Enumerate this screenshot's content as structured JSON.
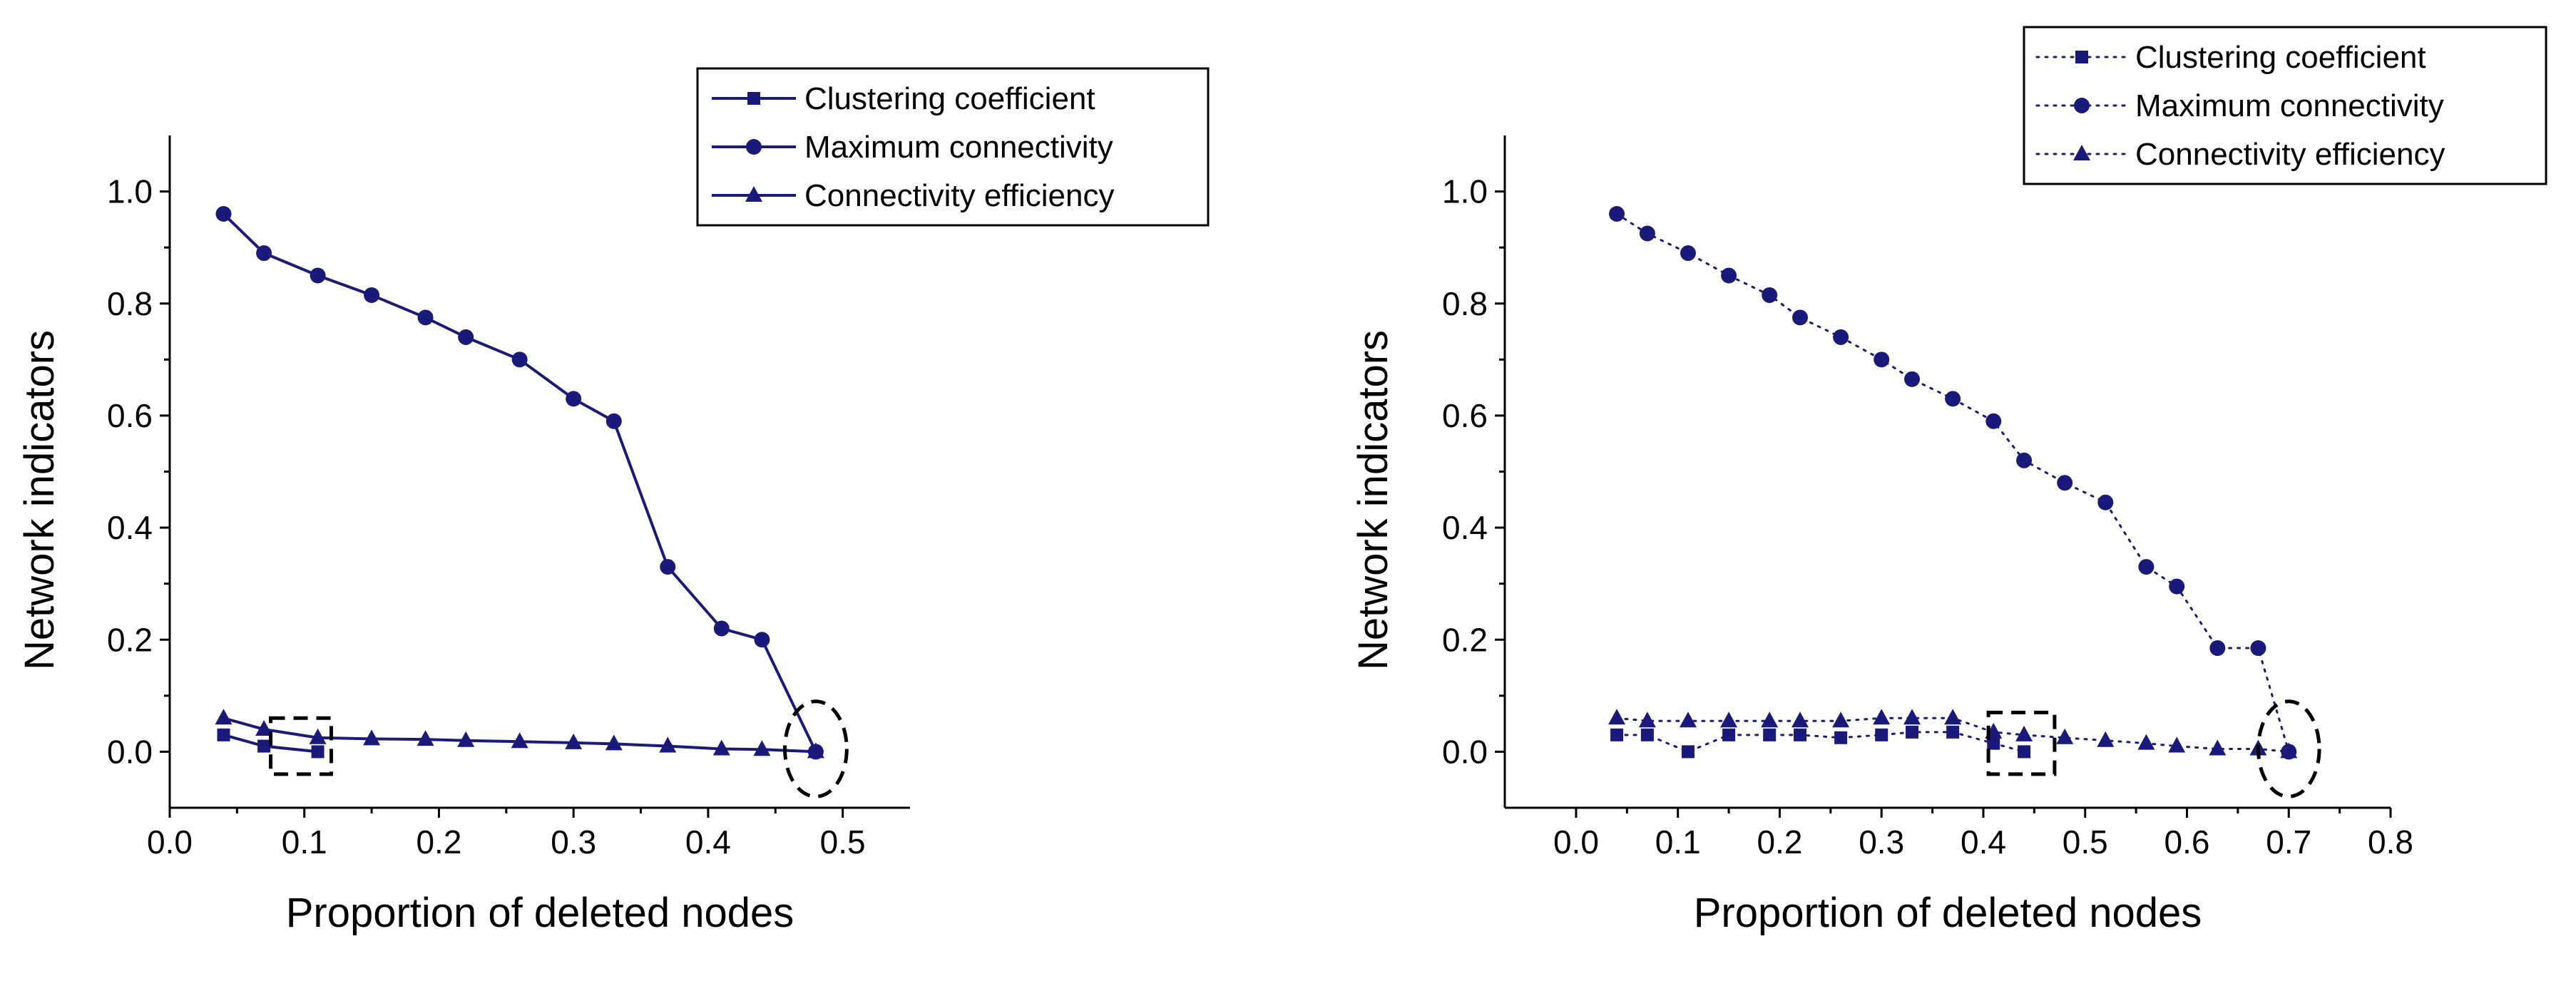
{
  "colors": {
    "series": "#1a1a7a",
    "axis": "#000000",
    "annotation": "#000000"
  },
  "chart_data": [
    {
      "type": "line",
      "line_style": "solid",
      "xlabel": "Proportion of deleted nodes",
      "ylabel": "Network indicators",
      "xlim": [
        0.0,
        0.55
      ],
      "ylim": [
        -0.1,
        1.1
      ],
      "xticks": [
        0.0,
        0.1,
        0.2,
        0.3,
        0.4,
        0.5
      ],
      "xtick_labels": [
        "0.0",
        "0.1",
        "0.2",
        "0.3",
        "0.4",
        "0.5"
      ],
      "yticks": [
        0.0,
        0.2,
        0.4,
        0.6,
        0.8,
        1.0
      ],
      "ytick_labels": [
        "0.0",
        "0.2",
        "0.4",
        "0.6",
        "0.8",
        "1.0"
      ],
      "legend_position": "top-right",
      "series": [
        {
          "name": "Clustering coefficient",
          "marker": "square",
          "x": [
            0.04,
            0.07,
            0.11
          ],
          "y": [
            0.03,
            0.01,
            0.0
          ]
        },
        {
          "name": "Maximum connectivity",
          "marker": "circle",
          "x": [
            0.04,
            0.07,
            0.11,
            0.15,
            0.19,
            0.22,
            0.26,
            0.3,
            0.33,
            0.37,
            0.41,
            0.44,
            0.48
          ],
          "y": [
            0.96,
            0.89,
            0.85,
            0.815,
            0.775,
            0.74,
            0.7,
            0.63,
            0.59,
            0.33,
            0.22,
            0.2,
            0.0
          ]
        },
        {
          "name": "Connectivity efficiency",
          "marker": "triangle",
          "x": [
            0.04,
            0.07,
            0.11,
            0.15,
            0.19,
            0.22,
            0.26,
            0.3,
            0.33,
            0.37,
            0.41,
            0.44,
            0.48
          ],
          "y": [
            0.06,
            0.04,
            0.025,
            0.023,
            0.022,
            0.02,
            0.018,
            0.016,
            0.014,
            0.01,
            0.005,
            0.004,
            0.0
          ]
        }
      ],
      "annotations": [
        {
          "shape": "dashed-rectangle",
          "x_range": [
            0.075,
            0.12
          ],
          "y_range": [
            -0.04,
            0.06
          ]
        },
        {
          "shape": "dashed-ellipse",
          "x_center": 0.48,
          "y_center": 0.005,
          "x_radius": 0.023,
          "y_radius": 0.085
        }
      ]
    },
    {
      "type": "line",
      "line_style": "dotted",
      "xlabel": "Proportion of deleted nodes",
      "ylabel": "Network indicators",
      "xlim": [
        -0.07,
        0.8
      ],
      "ylim": [
        -0.1,
        1.1
      ],
      "xticks": [
        0.0,
        0.1,
        0.2,
        0.3,
        0.4,
        0.5,
        0.6,
        0.7,
        0.8
      ],
      "xtick_labels": [
        "0.0",
        "0.1",
        "0.2",
        "0.3",
        "0.4",
        "0.5",
        "0.6",
        "0.7",
        "0.8"
      ],
      "yticks": [
        0.0,
        0.2,
        0.4,
        0.6,
        0.8,
        1.0
      ],
      "ytick_labels": [
        "0.0",
        "0.2",
        "0.4",
        "0.6",
        "0.8",
        "1.0"
      ],
      "legend_position": "top-right",
      "series": [
        {
          "name": "Clustering coefficient",
          "marker": "square",
          "x": [
            0.04,
            0.07,
            0.11,
            0.15,
            0.19,
            0.22,
            0.26,
            0.3,
            0.33,
            0.37,
            0.41,
            0.44
          ],
          "y": [
            0.03,
            0.03,
            0.0,
            0.03,
            0.03,
            0.03,
            0.025,
            0.03,
            0.035,
            0.035,
            0.015,
            0.0
          ]
        },
        {
          "name": "Maximum connectivity",
          "marker": "circle",
          "x": [
            0.04,
            0.07,
            0.11,
            0.15,
            0.19,
            0.22,
            0.26,
            0.3,
            0.33,
            0.37,
            0.41,
            0.44,
            0.48,
            0.52,
            0.56,
            0.59,
            0.63,
            0.67,
            0.7
          ],
          "y": [
            0.96,
            0.925,
            0.89,
            0.85,
            0.815,
            0.775,
            0.74,
            0.7,
            0.665,
            0.63,
            0.59,
            0.52,
            0.48,
            0.445,
            0.33,
            0.295,
            0.185,
            0.185,
            0.0
          ]
        },
        {
          "name": "Connectivity efficiency",
          "marker": "triangle",
          "x": [
            0.04,
            0.07,
            0.11,
            0.15,
            0.19,
            0.22,
            0.26,
            0.3,
            0.33,
            0.37,
            0.41,
            0.44,
            0.48,
            0.52,
            0.56,
            0.59,
            0.63,
            0.67,
            0.7
          ],
          "y": [
            0.06,
            0.055,
            0.055,
            0.055,
            0.055,
            0.055,
            0.055,
            0.06,
            0.06,
            0.06,
            0.035,
            0.03,
            0.025,
            0.02,
            0.015,
            0.01,
            0.005,
            0.005,
            0.0
          ]
        }
      ],
      "annotations": [
        {
          "shape": "dashed-rectangle",
          "x_range": [
            0.405,
            0.47
          ],
          "y_range": [
            -0.04,
            0.07
          ]
        },
        {
          "shape": "dashed-ellipse",
          "x_center": 0.7,
          "y_center": 0.005,
          "x_radius": 0.03,
          "y_radius": 0.085
        }
      ]
    }
  ]
}
